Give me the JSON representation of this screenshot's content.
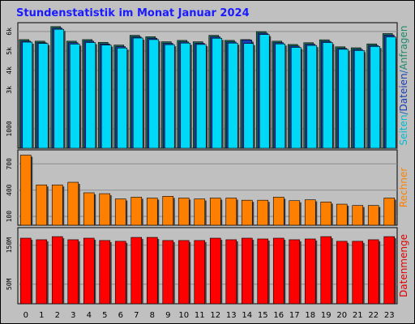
{
  "chart_data": [
    {
      "type": "bar",
      "panel": "top",
      "title": "Stundenstatistik im Monat Januar 2024",
      "categories": [
        "0",
        "1",
        "2",
        "3",
        "4",
        "5",
        "6",
        "7",
        "8",
        "9",
        "10",
        "11",
        "12",
        "13",
        "14",
        "15",
        "16",
        "17",
        "18",
        "19",
        "20",
        "21",
        "22",
        "23"
      ],
      "y_tick_labels": [
        "1000",
        "3k",
        "4k",
        "5k",
        "6k"
      ],
      "y_ticks": [
        1000,
        3000,
        4000,
        5000,
        6000
      ],
      "ylim": [
        0,
        6450
      ],
      "grid": true,
      "ylabel_parts": [
        {
          "text": "Seiten",
          "color": "#00bcd4"
        },
        {
          "text": "/",
          "color": "#1565c0"
        },
        {
          "text": "Dateien",
          "color": "#1a3fb5"
        },
        {
          "text": "/",
          "color": "#1565c0"
        },
        {
          "text": "Anfragen",
          "color": "#1b8a6b"
        }
      ],
      "series": [
        {
          "name": "Anfragen",
          "color": "#1f6f5a",
          "values": [
            5580,
            5500,
            6250,
            5500,
            5580,
            5440,
            5300,
            5800,
            5730,
            5470,
            5540,
            5470,
            5800,
            5540,
            5580,
            5990,
            5500,
            5330,
            5420,
            5570,
            5210,
            5160,
            5360,
            5890
          ]
        },
        {
          "name": "Dateien",
          "color": "#1a3fb5",
          "values": [
            5500,
            5420,
            6170,
            5420,
            5500,
            5360,
            5220,
            5720,
            5650,
            5390,
            5460,
            5390,
            5720,
            5460,
            5560,
            5910,
            5420,
            5250,
            5340,
            5490,
            5130,
            5080,
            5280,
            5810
          ]
        },
        {
          "name": "Seiten",
          "color": "#00d8f8",
          "values": [
            5450,
            5380,
            6110,
            5350,
            5430,
            5300,
            5150,
            5660,
            5580,
            5320,
            5400,
            5330,
            5650,
            5400,
            5380,
            5840,
            5360,
            5180,
            5280,
            5430,
            5080,
            5020,
            5230,
            5720
          ]
        }
      ]
    },
    {
      "type": "bar",
      "panel": "middle",
      "y_tick_labels": [
        "100",
        "400",
        "700"
      ],
      "y_ticks": [
        100,
        400,
        700
      ],
      "ylim": [
        0,
        860
      ],
      "grid": true,
      "ylabel": "Rechner",
      "ylabel_color": "#ff8000",
      "series": [
        {
          "name": "Rechner",
          "color": "#ff8000",
          "values": [
            800,
            460,
            460,
            490,
            370,
            360,
            300,
            320,
            310,
            330,
            310,
            300,
            310,
            310,
            285,
            285,
            320,
            280,
            290,
            265,
            240,
            225,
            225,
            310
          ]
        }
      ]
    },
    {
      "type": "bar",
      "panel": "bottom",
      "y_tick_labels": [
        "50M",
        "150M"
      ],
      "y_ticks": [
        50,
        150
      ],
      "ylim": [
        0,
        195
      ],
      "grid": true,
      "ylabel": "Datenmenge",
      "ylabel_color": "#e00000",
      "series": [
        {
          "name": "Datenmenge",
          "color": "#ff0000",
          "values": [
            168,
            164,
            172,
            164,
            168,
            162,
            160,
            170,
            170,
            162,
            162,
            162,
            168,
            164,
            168,
            166,
            168,
            164,
            166,
            172,
            160,
            160,
            164,
            172
          ]
        }
      ]
    }
  ],
  "colors": {
    "background": "#c0c0c0",
    "frame": "#000000",
    "title": "#1a1aff",
    "grid": "#8c8c8c",
    "tick_label": "#000000",
    "x_tick_label": "#000000"
  }
}
